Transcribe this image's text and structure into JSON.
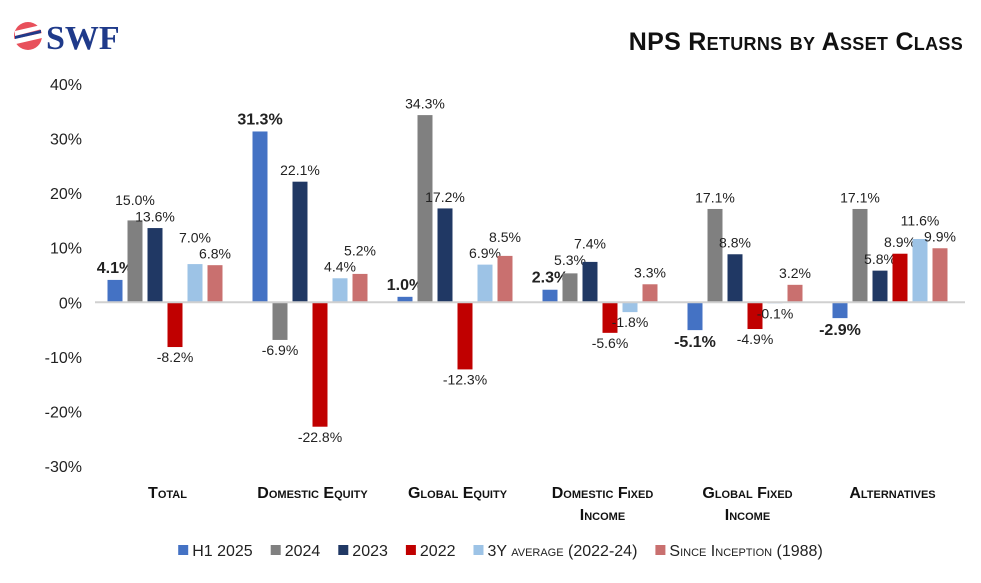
{
  "logo_text": "SWF",
  "chart_data": {
    "type": "bar",
    "title": "NPS Returns by Asset Class",
    "categories": [
      "Total",
      "Domestic Equity",
      "Global Equity",
      "Domestic Fixed Income",
      "Global Fixed Income",
      "Alternatives"
    ],
    "series": [
      {
        "name": "H1 2025",
        "color": "#4472C4",
        "values": [
          4.1,
          31.3,
          1.0,
          2.3,
          -5.1,
          -2.9
        ]
      },
      {
        "name": "2024",
        "color": "#808080",
        "values": [
          15.0,
          -6.9,
          34.3,
          5.3,
          17.1,
          17.1
        ]
      },
      {
        "name": "2023",
        "color": "#203864",
        "values": [
          13.6,
          22.1,
          17.2,
          7.4,
          8.8,
          5.8
        ]
      },
      {
        "name": "2022",
        "color": "#C00000",
        "values": [
          -8.2,
          -22.8,
          -12.3,
          -5.6,
          -4.9,
          8.9
        ]
      },
      {
        "name": "3Y average (2022-24)",
        "color": "#9DC3E6",
        "values": [
          7.0,
          4.4,
          6.9,
          -1.8,
          -0.1,
          11.6
        ]
      },
      {
        "name": "Since Inception (1988)",
        "color": "#C9706F",
        "values": [
          6.8,
          5.2,
          8.5,
          3.3,
          3.2,
          9.9
        ]
      }
    ],
    "ylim": [
      -30,
      40
    ],
    "yticks": [
      "-30%",
      "-20%",
      "-10%",
      "0%",
      "10%",
      "20%",
      "30%",
      "40%"
    ],
    "grid": false,
    "legend": "bottom",
    "xlabel": "",
    "ylabel": ""
  }
}
